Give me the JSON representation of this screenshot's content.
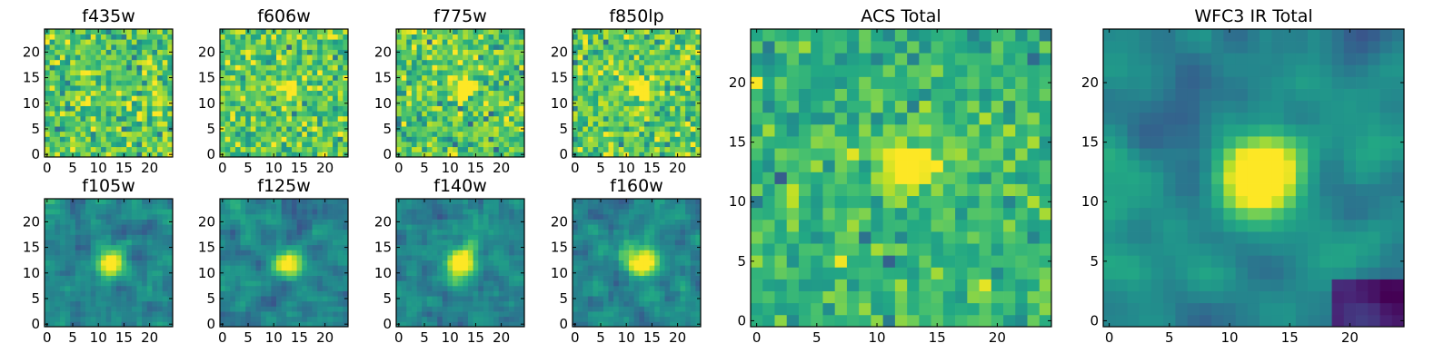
{
  "figure": {
    "description_colormap": "viridis",
    "panel_titles": [
      "f435w",
      "f606w",
      "f775w",
      "f850lp",
      "f105w",
      "f125w",
      "f140w",
      "f160w",
      "ACS Total",
      "WFC3 IR Total"
    ]
  },
  "chart_data": [
    {
      "type": "heatmap",
      "title": "f435w",
      "grid": [
        25,
        25
      ],
      "xlim": [
        -0.5,
        24.5
      ],
      "ylim": [
        -0.5,
        24.5
      ],
      "xticks": [
        0,
        5,
        10,
        15,
        20
      ],
      "yticks": [
        0,
        5,
        10,
        15,
        20
      ],
      "xtick_labels": [
        "0",
        "5",
        "10",
        "15",
        "20"
      ],
      "ytick_labels": [
        "0",
        "5",
        "10",
        "15",
        "20"
      ],
      "colormap": "viridis",
      "noise_level": "high",
      "central_source": false,
      "source_center": [
        12,
        12
      ],
      "source_peak": 0.0,
      "source_radius": 1.8
    },
    {
      "type": "heatmap",
      "title": "f606w",
      "grid": [
        25,
        25
      ],
      "xlim": [
        -0.5,
        24.5
      ],
      "ylim": [
        -0.5,
        24.5
      ],
      "xticks": [
        0,
        5,
        10,
        15,
        20
      ],
      "yticks": [
        0,
        5,
        10,
        15,
        20
      ],
      "xtick_labels": [
        "0",
        "5",
        "10",
        "15",
        "20"
      ],
      "ytick_labels": [
        "0",
        "5",
        "10",
        "15",
        "20"
      ],
      "colormap": "viridis",
      "noise_level": "high",
      "central_source": true,
      "source_center": [
        12.5,
        13
      ],
      "source_peak": 0.25,
      "source_radius": 1.6
    },
    {
      "type": "heatmap",
      "title": "f775w",
      "grid": [
        25,
        25
      ],
      "xlim": [
        -0.5,
        24.5
      ],
      "ylim": [
        -0.5,
        24.5
      ],
      "xticks": [
        0,
        5,
        10,
        15,
        20
      ],
      "yticks": [
        0,
        5,
        10,
        15,
        20
      ],
      "xtick_labels": [
        "0",
        "5",
        "10",
        "15",
        "20"
      ],
      "ytick_labels": [
        "0",
        "5",
        "10",
        "15",
        "20"
      ],
      "colormap": "viridis",
      "noise_level": "high",
      "central_source": true,
      "source_center": [
        12.5,
        13
      ],
      "source_peak": 0.45,
      "source_radius": 1.6
    },
    {
      "type": "heatmap",
      "title": "f850lp",
      "grid": [
        25,
        25
      ],
      "xlim": [
        -0.5,
        24.5
      ],
      "ylim": [
        -0.5,
        24.5
      ],
      "xticks": [
        0,
        5,
        10,
        15,
        20
      ],
      "yticks": [
        0,
        5,
        10,
        15,
        20
      ],
      "xtick_labels": [
        "0",
        "5",
        "10",
        "15",
        "20"
      ],
      "ytick_labels": [
        "0",
        "5",
        "10",
        "15",
        "20"
      ],
      "colormap": "viridis",
      "noise_level": "high",
      "central_source": true,
      "source_center": [
        12.5,
        13
      ],
      "source_peak": 0.4,
      "source_radius": 1.7
    },
    {
      "type": "heatmap",
      "title": "f105w",
      "grid": [
        25,
        25
      ],
      "xlim": [
        -0.5,
        24.5
      ],
      "ylim": [
        -0.5,
        24.5
      ],
      "xticks": [
        0,
        5,
        10,
        15,
        20
      ],
      "yticks": [
        0,
        5,
        10,
        15,
        20
      ],
      "xtick_labels": [
        "0",
        "5",
        "10",
        "15",
        "20"
      ],
      "ytick_labels": [
        "0",
        "5",
        "10",
        "15",
        "20"
      ],
      "colormap": "viridis",
      "noise_level": "medium",
      "central_source": true,
      "source_center": [
        12.5,
        12
      ],
      "source_peak": 0.75,
      "source_radius": 1.9
    },
    {
      "type": "heatmap",
      "title": "f125w",
      "grid": [
        25,
        25
      ],
      "xlim": [
        -0.5,
        24.5
      ],
      "ylim": [
        -0.5,
        24.5
      ],
      "xticks": [
        0,
        5,
        10,
        15,
        20
      ],
      "yticks": [
        0,
        5,
        10,
        15,
        20
      ],
      "xtick_labels": [
        "0",
        "5",
        "10",
        "15",
        "20"
      ],
      "ytick_labels": [
        "0",
        "5",
        "10",
        "15",
        "20"
      ],
      "colormap": "viridis",
      "noise_level": "medium",
      "central_source": true,
      "source_center": [
        12.5,
        12
      ],
      "source_peak": 0.65,
      "source_radius": 2.0
    },
    {
      "type": "heatmap",
      "title": "f140w",
      "grid": [
        25,
        25
      ],
      "xlim": [
        -0.5,
        24.5
      ],
      "ylim": [
        -0.5,
        24.5
      ],
      "xticks": [
        0,
        5,
        10,
        15,
        20
      ],
      "yticks": [
        0,
        5,
        10,
        15,
        20
      ],
      "xtick_labels": [
        "0",
        "5",
        "10",
        "15",
        "20"
      ],
      "ytick_labels": [
        "0",
        "5",
        "10",
        "15",
        "20"
      ],
      "colormap": "viridis",
      "noise_level": "medium",
      "central_source": true,
      "source_center": [
        12.5,
        12
      ],
      "source_peak": 0.8,
      "source_radius": 2.0
    },
    {
      "type": "heatmap",
      "title": "f160w",
      "grid": [
        25,
        25
      ],
      "xlim": [
        -0.5,
        24.5
      ],
      "ylim": [
        -0.5,
        24.5
      ],
      "xticks": [
        0,
        5,
        10,
        15,
        20
      ],
      "yticks": [
        0,
        5,
        10,
        15,
        20
      ],
      "xtick_labels": [
        "0",
        "5",
        "10",
        "15",
        "20"
      ],
      "ytick_labels": [
        "0",
        "5",
        "10",
        "15",
        "20"
      ],
      "colormap": "viridis",
      "noise_level": "medium",
      "central_source": true,
      "source_center": [
        13,
        12
      ],
      "source_peak": 0.75,
      "source_radius": 2.0
    },
    {
      "type": "heatmap",
      "title": "ACS Total",
      "grid": [
        25,
        25
      ],
      "xlim": [
        -0.5,
        24.5
      ],
      "ylim": [
        -0.5,
        24.5
      ],
      "xticks": [
        0,
        5,
        10,
        15,
        20
      ],
      "yticks": [
        0,
        5,
        10,
        15,
        20
      ],
      "xtick_labels": [
        "0",
        "5",
        "10",
        "15",
        "20"
      ],
      "ytick_labels": [
        "0",
        "5",
        "10",
        "15",
        "20"
      ],
      "colormap": "viridis",
      "noise_level": "medium-high",
      "central_source": true,
      "source_center": [
        12.5,
        13
      ],
      "source_peak": 0.55,
      "source_radius": 1.6
    },
    {
      "type": "heatmap",
      "title": "WFC3 IR Total",
      "grid": [
        25,
        25
      ],
      "xlim": [
        -0.5,
        24.5
      ],
      "ylim": [
        -0.5,
        24.5
      ],
      "xticks": [
        0,
        5,
        10,
        15,
        20
      ],
      "yticks": [
        0,
        5,
        10,
        15,
        20
      ],
      "xtick_labels": [
        "0",
        "5",
        "10",
        "15",
        "20"
      ],
      "ytick_labels": [
        "0",
        "5",
        "10",
        "15",
        "20"
      ],
      "colormap": "viridis",
      "noise_level": "low",
      "central_source": true,
      "source_center": [
        12.5,
        12
      ],
      "source_peak": 0.85,
      "source_radius": 2.2
    }
  ]
}
